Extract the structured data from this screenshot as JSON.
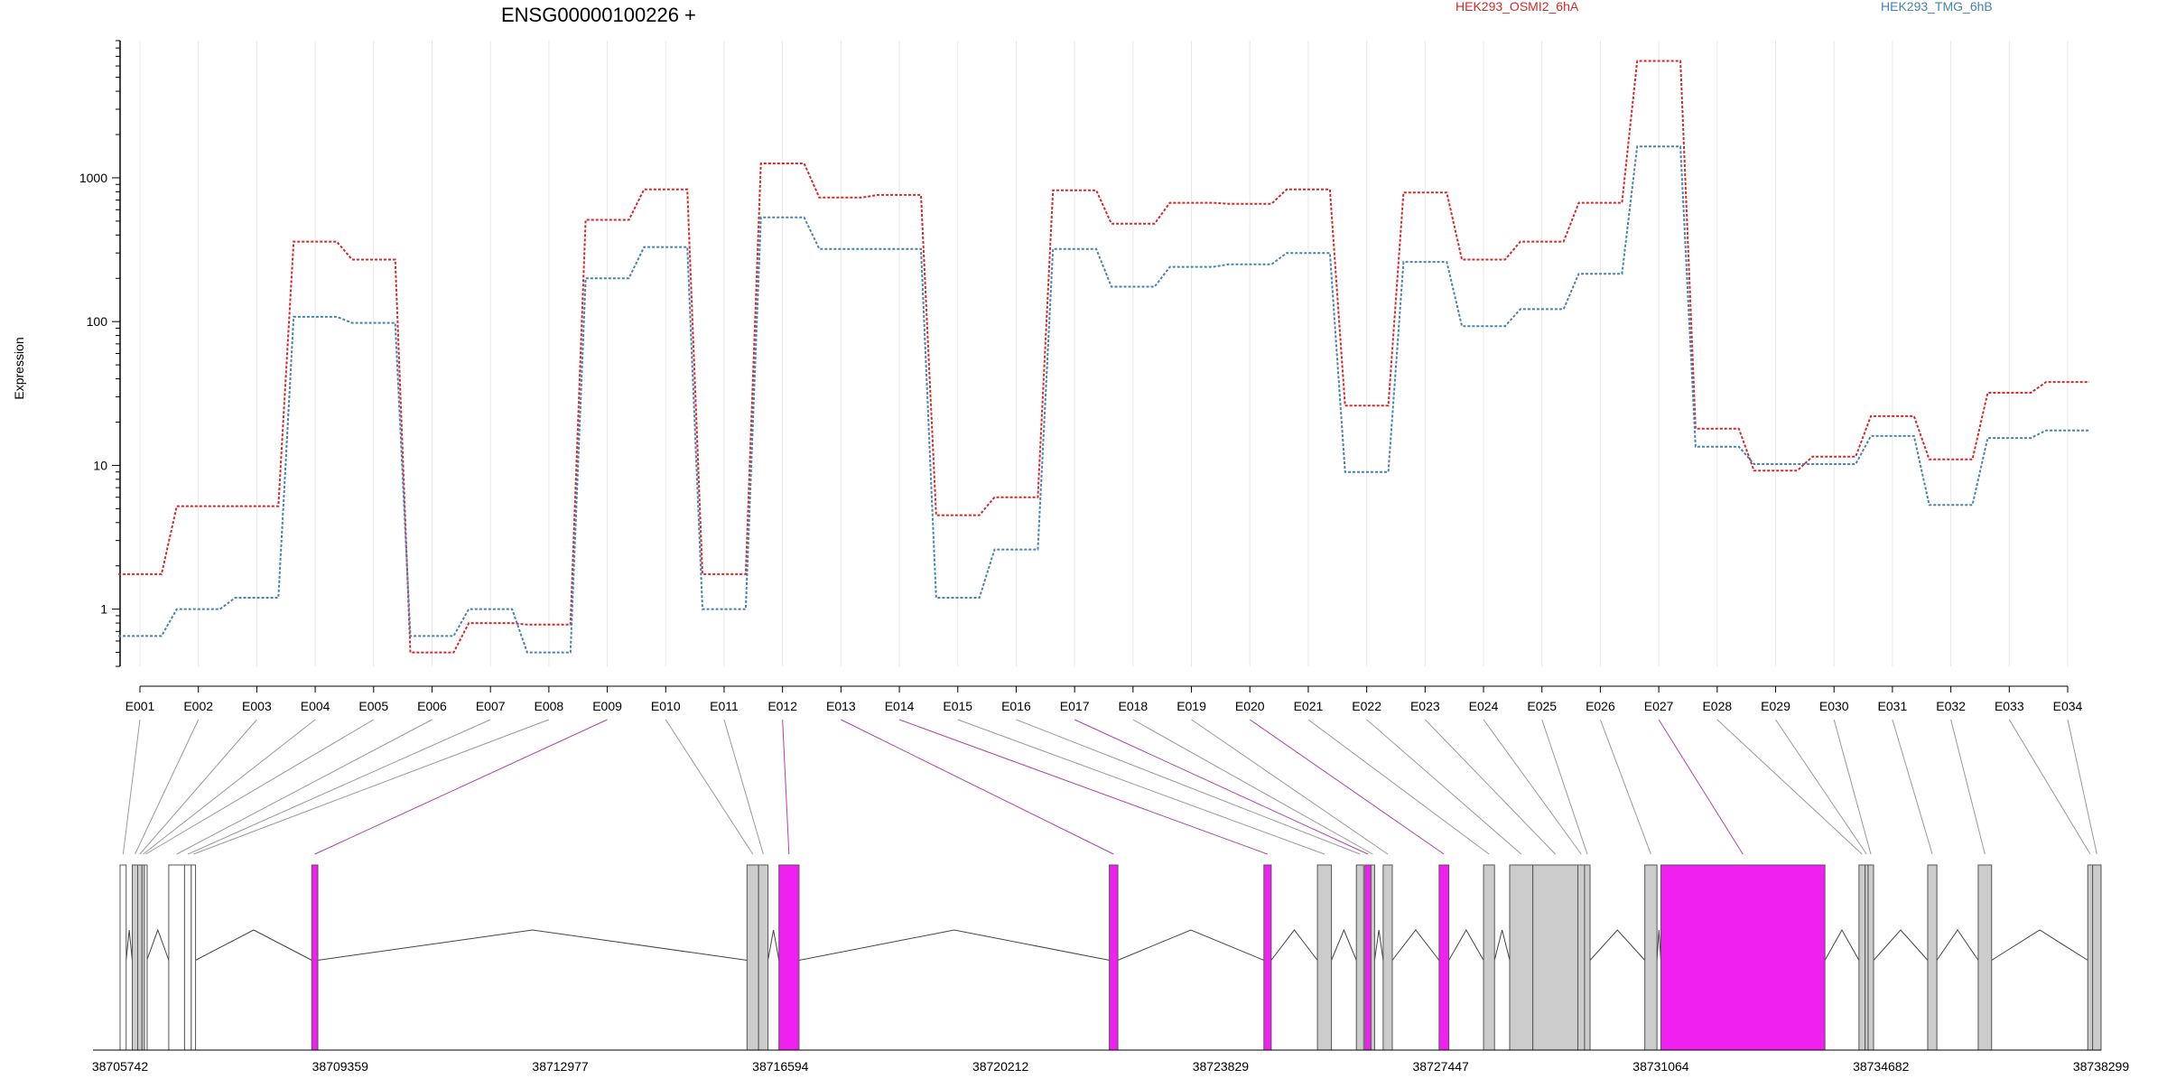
{
  "chart_data": {
    "type": "line",
    "title": "ENSG00000100226 +",
    "ylabel": "Expression",
    "xlabel": "",
    "y_scale": "log",
    "ylim": [
      0.4,
      9000
    ],
    "y_ticks": [
      1,
      10,
      100,
      1000
    ],
    "y_tick_labels": [
      "1",
      "10",
      "100",
      "1000"
    ],
    "categories": [
      "E001",
      "E002",
      "E003",
      "E004",
      "E005",
      "E006",
      "E007",
      "E008",
      "E009",
      "E010",
      "E011",
      "E012",
      "E013",
      "E014",
      "E015",
      "E016",
      "E017",
      "E018",
      "E019",
      "E020",
      "E021",
      "E022",
      "E023",
      "E024",
      "E025",
      "E026",
      "E027",
      "E028",
      "E029",
      "E030",
      "E031",
      "E032",
      "E033",
      "E034"
    ],
    "legend_position": "top",
    "grid": true,
    "series": [
      {
        "name": "HEK293_OSMI2_6hA",
        "color": "#d62728",
        "values": [
          1.75,
          5.2,
          5.2,
          360,
          270,
          0.5,
          0.8,
          0.78,
          510,
          830,
          1.75,
          1260,
          730,
          760,
          4.5,
          6.0,
          820,
          480,
          670,
          660,
          830,
          26,
          790,
          270,
          360,
          670,
          6500,
          18,
          9.2,
          11.5,
          22,
          11,
          32,
          38
        ]
      },
      {
        "name": "HEK293_TMG_6hB",
        "color": "#4682b4",
        "values": [
          0.65,
          1.0,
          1.2,
          108,
          98,
          0.65,
          1.0,
          0.5,
          200,
          330,
          1.0,
          530,
          320,
          320,
          1.2,
          2.6,
          320,
          175,
          240,
          250,
          300,
          9,
          260,
          93,
          122,
          215,
          1650,
          13.5,
          10.2,
          10.2,
          16,
          5.3,
          15.5,
          17.5
        ]
      }
    ],
    "highlighted_exons": [
      "E009",
      "E012",
      "E013",
      "E014",
      "E017",
      "E020",
      "E027"
    ],
    "gene_model": {
      "coordinate_range": [
        38705742,
        38738299
      ],
      "tick_labels": [
        "38705742",
        "38709359",
        "38712977",
        "38716594",
        "38720212",
        "38723829",
        "38727447",
        "38731064",
        "38734682",
        "38738299"
      ],
      "exons": [
        {
          "id": "E001",
          "start": 38705742,
          "end": 38705842,
          "type": "utr"
        },
        {
          "id": "E002",
          "start": 38705942,
          "end": 38706032,
          "type": "coding"
        },
        {
          "id": "E003",
          "start": 38706032,
          "end": 38706102,
          "type": "coding"
        },
        {
          "id": "E004",
          "start": 38706102,
          "end": 38706142,
          "type": "coding"
        },
        {
          "id": "E005",
          "start": 38706142,
          "end": 38706182,
          "type": "utr"
        },
        {
          "id": "E006",
          "start": 38706542,
          "end": 38706802,
          "type": "utr"
        },
        {
          "id": "E007",
          "start": 38706802,
          "end": 38706912,
          "type": "utr"
        },
        {
          "id": "E008",
          "start": 38706912,
          "end": 38706982,
          "type": "utr"
        },
        {
          "id": "E009",
          "start": 38708892,
          "end": 38708992,
          "type": "highlight"
        },
        {
          "id": "E010",
          "start": 38716045,
          "end": 38716235,
          "type": "coding"
        },
        {
          "id": "E011",
          "start": 38716235,
          "end": 38716390,
          "type": "coding"
        },
        {
          "id": "E012",
          "start": 38716570,
          "end": 38716900,
          "type": "highlight"
        },
        {
          "id": "E013",
          "start": 38722000,
          "end": 38722140,
          "type": "highlight"
        },
        {
          "id": "E014",
          "start": 38724540,
          "end": 38724660,
          "type": "highlight"
        },
        {
          "id": "E015",
          "start": 38725420,
          "end": 38725650,
          "type": "coding"
        },
        {
          "id": "E016",
          "start": 38726060,
          "end": 38726180,
          "type": "coding"
        },
        {
          "id": "E017",
          "start": 38726200,
          "end": 38726300,
          "type": "highlight"
        },
        {
          "id": "E018",
          "start": 38726300,
          "end": 38726360,
          "type": "coding"
        },
        {
          "id": "E019",
          "start": 38726500,
          "end": 38726650,
          "type": "coding"
        },
        {
          "id": "E020",
          "start": 38727420,
          "end": 38727580,
          "type": "highlight"
        },
        {
          "id": "E021",
          "start": 38728150,
          "end": 38728330,
          "type": "coding"
        },
        {
          "id": "E022",
          "start": 38728580,
          "end": 38728960,
          "type": "coding"
        },
        {
          "id": "E023",
          "start": 38728960,
          "end": 38729700,
          "type": "coding"
        },
        {
          "id": "E024",
          "start": 38729700,
          "end": 38729810,
          "type": "coding"
        },
        {
          "id": "E025",
          "start": 38729810,
          "end": 38729900,
          "type": "coding"
        },
        {
          "id": "E026",
          "start": 38730800,
          "end": 38731000,
          "type": "coding"
        },
        {
          "id": "E027",
          "start": 38731064,
          "end": 38733760,
          "type": "highlight"
        },
        {
          "id": "E028",
          "start": 38734320,
          "end": 38734420,
          "type": "coding"
        },
        {
          "id": "E029",
          "start": 38734420,
          "end": 38734470,
          "type": "coding"
        },
        {
          "id": "E030",
          "start": 38734470,
          "end": 38734560,
          "type": "coding"
        },
        {
          "id": "E031",
          "start": 38735450,
          "end": 38735600,
          "type": "coding"
        },
        {
          "id": "E032",
          "start": 38736280,
          "end": 38736500,
          "type": "coding"
        },
        {
          "id": "E033",
          "start": 38738080,
          "end": 38738160,
          "type": "coding"
        },
        {
          "id": "E034",
          "start": 38738160,
          "end": 38738299,
          "type": "coding"
        }
      ],
      "colors": {
        "utr": "#ffffff",
        "coding": "#cccccc",
        "highlight": "#f020f0",
        "stroke": "#555555"
      }
    }
  }
}
